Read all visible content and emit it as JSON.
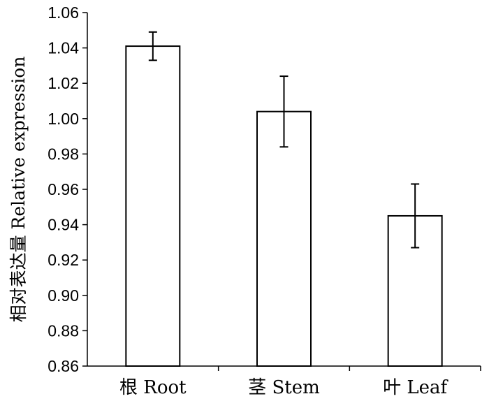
{
  "chart_data": {
    "type": "bar",
    "categories": [
      "根 Root",
      "茎 Stem",
      "叶 Leaf"
    ],
    "values": [
      1.041,
      1.004,
      0.945
    ],
    "errors": [
      0.008,
      0.02,
      0.018
    ],
    "title": "",
    "xlabel": "",
    "ylabel": "相对表达量 Relative expression",
    "ylim": [
      0.86,
      1.06
    ],
    "yticks": [
      "0.86",
      "0.88",
      "0.90",
      "0.92",
      "0.94",
      "0.96",
      "0.98",
      "1.00",
      "1.02",
      "1.04",
      "1.06"
    ],
    "grid": false,
    "legend": "none",
    "bar_fill": "#ffffff",
    "bar_stroke": "#000000"
  }
}
